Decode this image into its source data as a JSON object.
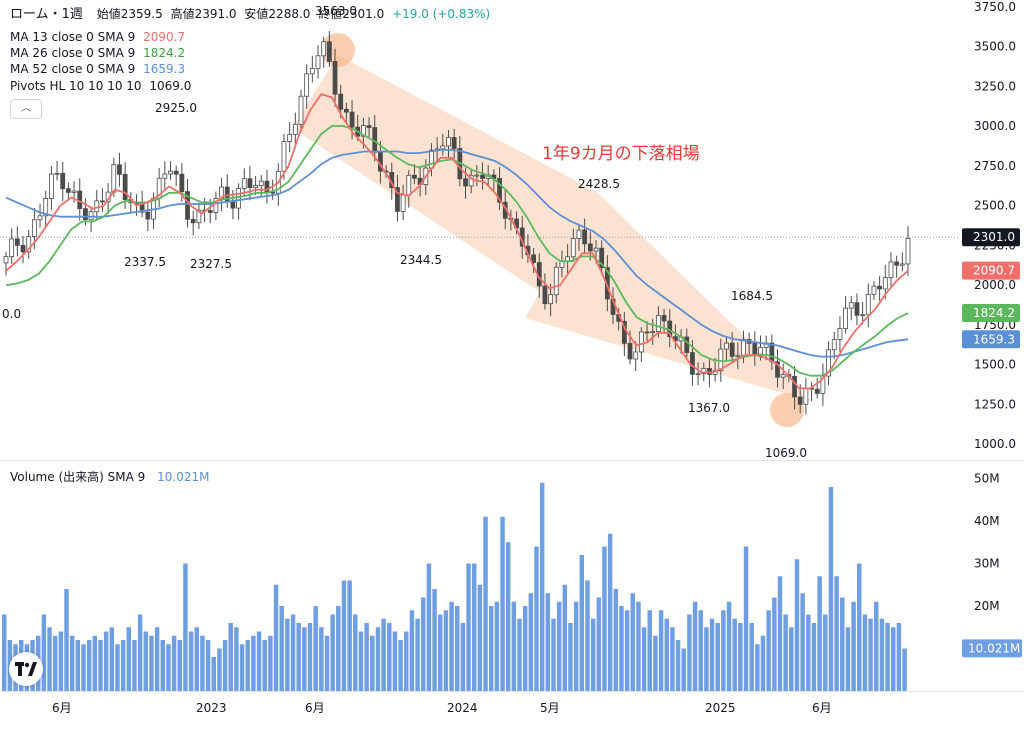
{
  "header": {
    "symbol": "ローム・1週",
    "open_label": "始値",
    "open": "2359.5",
    "high_label": "高値",
    "high": "2391.0",
    "low_label": "安値",
    "low": "2288.0",
    "close_label": "終値",
    "close": "2301.0",
    "change": "+19.0 (+0.83%)"
  },
  "legend": {
    "ma13": {
      "label": "MA 13 close 0 SMA 9",
      "value": "2090.7",
      "color": "#ef6f6a"
    },
    "ma26": {
      "label": "MA 26 close 0 SMA 9",
      "value": "1824.2",
      "color": "#5cb85c"
    },
    "ma52": {
      "label": "MA 52 close 0 SMA 9",
      "value": "1659.3",
      "color": "#5b8fd6"
    },
    "pivots": {
      "label": "Pivots HL 10 10 10 10",
      "value": "1069.0"
    },
    "collapse_icon": "chevron-up-icon"
  },
  "volume_legend": {
    "label": "Volume (出来高) SMA 9",
    "value": "10.021M",
    "color": "#6f9ee3"
  },
  "chart_data": {
    "type": "candlestick",
    "ylim": [
      900,
      3780
    ],
    "yticks": [
      1000,
      1250,
      1500,
      1750,
      2000,
      2250,
      2500,
      2750,
      3000,
      3250,
      3500,
      3750
    ],
    "ytick_labels": [
      "1000.0",
      "1250.0",
      "1500.0",
      "1750.0",
      "2000.0",
      "2250.0",
      "2500.0",
      "2750.0",
      "3000.0",
      "3250.0",
      "3500.0",
      "3750.0"
    ],
    "x_labels": [
      "6月",
      "2023",
      "6月",
      "2024",
      "5月",
      "2025",
      "6月"
    ],
    "price_anchors": [
      2150,
      2250,
      2300,
      2450,
      2600,
      2700,
      2600,
      2450,
      2400,
      2600,
      2750,
      2550,
      2450,
      2500,
      2600,
      2750,
      2600,
      2450,
      2400,
      2500,
      2600,
      2550,
      2600,
      2650,
      2600,
      2700,
      2900,
      3150,
      3400,
      3500,
      3300,
      3100,
      3000,
      2950,
      2850,
      2700,
      2500,
      2600,
      2700,
      2800,
      2900,
      2850,
      2700,
      2650,
      2700,
      2600,
      2500,
      2300,
      2200,
      2000,
      1950,
      2100,
      2250,
      2350,
      2250,
      2000,
      1800,
      1650,
      1550,
      1700,
      1800,
      1750,
      1600,
      1500,
      1450,
      1480,
      1550,
      1600,
      1650,
      1600,
      1550,
      1500,
      1400,
      1250,
      1300,
      1450,
      1600,
      1800,
      1850,
      1900,
      1950,
      2050,
      2150,
      2300
    ],
    "ma13": [
      2090,
      2150,
      2220,
      2300,
      2400,
      2500,
      2550,
      2520,
      2480,
      2500,
      2600,
      2580,
      2500,
      2520,
      2560,
      2620,
      2580,
      2500,
      2450,
      2500,
      2560,
      2570,
      2580,
      2600,
      2600,
      2640,
      2750,
      2950,
      3100,
      3200,
      3180,
      3050,
      2950,
      2880,
      2800,
      2700,
      2580,
      2560,
      2620,
      2720,
      2800,
      2800,
      2720,
      2660,
      2650,
      2580,
      2480,
      2350,
      2200,
      2050,
      1980,
      2000,
      2100,
      2200,
      2200,
      2050,
      1880,
      1720,
      1620,
      1640,
      1700,
      1700,
      1600,
      1500,
      1450,
      1450,
      1480,
      1520,
      1560,
      1560,
      1540,
      1500,
      1430,
      1350,
      1350,
      1400,
      1480,
      1600,
      1700,
      1780,
      1850,
      1950,
      2030,
      2090
    ],
    "ma26": [
      2000,
      2010,
      2030,
      2070,
      2150,
      2250,
      2350,
      2400,
      2400,
      2430,
      2500,
      2530,
      2520,
      2520,
      2540,
      2580,
      2580,
      2550,
      2520,
      2520,
      2540,
      2550,
      2560,
      2580,
      2580,
      2600,
      2650,
      2750,
      2850,
      2950,
      3000,
      3000,
      2980,
      2940,
      2900,
      2850,
      2800,
      2760,
      2740,
      2760,
      2780,
      2790,
      2760,
      2720,
      2700,
      2660,
      2600,
      2520,
      2420,
      2300,
      2200,
      2150,
      2150,
      2180,
      2180,
      2120,
      2020,
      1900,
      1800,
      1760,
      1740,
      1720,
      1680,
      1620,
      1560,
      1530,
      1520,
      1530,
      1550,
      1560,
      1560,
      1540,
      1500,
      1450,
      1430,
      1430,
      1460,
      1520,
      1580,
      1630,
      1680,
      1740,
      1790,
      1824
    ],
    "ma52": [
      2550,
      2520,
      2490,
      2460,
      2440,
      2430,
      2430,
      2430,
      2430,
      2430,
      2440,
      2450,
      2460,
      2470,
      2480,
      2500,
      2510,
      2510,
      2510,
      2510,
      2520,
      2530,
      2540,
      2550,
      2560,
      2570,
      2600,
      2650,
      2700,
      2760,
      2800,
      2820,
      2830,
      2840,
      2840,
      2840,
      2840,
      2830,
      2830,
      2840,
      2850,
      2850,
      2840,
      2820,
      2800,
      2780,
      2740,
      2690,
      2630,
      2560,
      2490,
      2440,
      2400,
      2370,
      2340,
      2290,
      2220,
      2140,
      2060,
      2000,
      1950,
      1900,
      1850,
      1800,
      1750,
      1710,
      1680,
      1660,
      1650,
      1640,
      1630,
      1620,
      1600,
      1580,
      1560,
      1550,
      1550,
      1560,
      1580,
      1600,
      1620,
      1640,
      1650,
      1659
    ],
    "volume": {
      "ylim": [
        0,
        52
      ],
      "yticks": [
        10,
        20,
        30,
        40,
        50
      ],
      "ytick_labels": [
        "10M",
        "20M",
        "30M",
        "40M",
        "50M"
      ],
      "values": [
        18,
        12,
        11,
        12,
        11,
        12,
        13,
        18,
        15,
        13,
        14,
        24,
        13,
        12,
        11,
        12,
        13,
        12,
        14,
        15,
        11,
        12,
        15,
        12,
        18,
        14,
        13,
        15,
        12,
        11,
        13,
        12,
        30,
        14,
        15,
        13,
        12,
        8,
        10,
        12,
        16,
        15,
        11,
        12,
        13,
        14,
        12,
        13,
        25,
        20,
        17,
        18,
        16,
        15,
        16,
        20,
        15,
        13,
        18,
        20,
        26,
        26,
        18,
        14,
        16,
        13,
        15,
        17,
        16,
        14,
        12,
        14,
        19,
        17,
        22,
        30,
        24,
        18,
        19,
        21,
        20,
        16,
        30,
        30,
        25,
        41,
        20,
        21,
        41,
        35,
        21,
        17,
        20,
        23,
        34,
        49,
        23,
        17,
        21,
        25,
        16,
        21,
        32,
        26,
        17,
        22,
        34,
        37,
        24,
        20,
        19,
        23,
        21,
        15,
        19,
        13,
        19,
        17,
        15,
        12,
        10,
        18,
        21,
        19,
        15,
        17,
        16,
        19,
        21,
        17,
        16,
        34,
        16,
        11,
        13,
        19,
        22,
        27,
        18,
        15,
        31,
        23,
        18,
        16,
        27,
        18,
        48,
        27,
        22,
        15,
        21,
        30,
        18,
        17,
        21,
        17,
        16,
        15,
        16,
        10
      ],
      "sma_label": "10.021M"
    },
    "pivot_labels": [
      "2925.0",
      "3563.0",
      "2337.5",
      "2327.5",
      "2344.5",
      "2428.5",
      "1684.5",
      "1367.0",
      "1069.0",
      "0.0"
    ],
    "annotation": "1年9カ月の下落相場",
    "last_price": "2301.0",
    "price_tags": [
      {
        "label": "2301.0",
        "value": 2301.0,
        "color": "#131722"
      },
      {
        "label": "2090.7",
        "value": 2090.7,
        "color": "#ef6f6a"
      },
      {
        "label": "1824.2",
        "value": 1824.2,
        "color": "#5cb85c"
      },
      {
        "label": "1659.3",
        "value": 1659.3,
        "color": "#5b8fd6"
      }
    ],
    "volume_tag": {
      "label": "10.021M",
      "color": "#6f9ee3"
    }
  }
}
